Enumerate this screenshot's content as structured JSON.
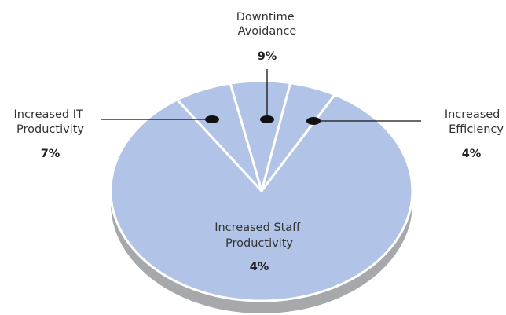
{
  "chart_data": {
    "type": "pie",
    "style": "3d-tilted",
    "colors": {
      "slice": "#b1c3e6",
      "side": "#a6a8ab",
      "separator": "#ffffff",
      "leader": "#111111"
    },
    "slices": [
      {
        "label_lines": [
          "Increased Staff",
          "Productivity"
        ],
        "label": "Increased Staff Productivity",
        "value_text": "4%",
        "value": 4
      },
      {
        "label_lines": [
          "Increased",
          "Efficiency"
        ],
        "label": "Increased Efficiency",
        "value_text": "4%",
        "value": 4
      },
      {
        "label_lines": [
          "Downtime",
          "Avoidance"
        ],
        "label": "Downtime Avoidance",
        "value_text": "9%",
        "value": 9
      },
      {
        "label_lines": [
          "Increased IT",
          "Productivity"
        ],
        "label": "Increased IT Productivity",
        "value_text": "7%",
        "value": 7
      }
    ]
  }
}
